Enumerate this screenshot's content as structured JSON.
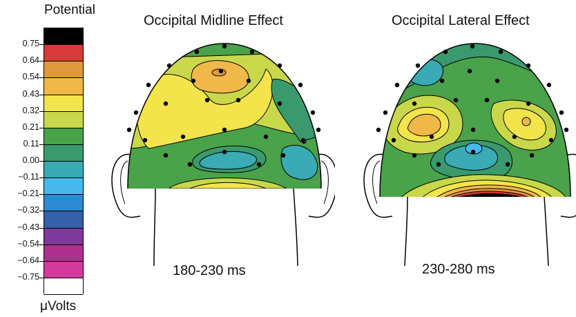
{
  "colorbar": {
    "title": "Potential",
    "unit": "μVolts",
    "ticks": [
      "0.75",
      "0.64",
      "0.54",
      "0.43",
      "0.32",
      "0.21",
      "0.11",
      "0.00",
      "−0.11",
      "−0.21",
      "−0.32",
      "−0.43",
      "−0.54",
      "−0.64",
      "−0.75"
    ],
    "colors": [
      "#000000",
      "#d63a3a",
      "#e0983c",
      "#f0b848",
      "#f4e44c",
      "#c8d84a",
      "#4aa24a",
      "#3a9a6e",
      "#3aaab4",
      "#48b8ec",
      "#2e8ad2",
      "#3660a8",
      "#7e3a9a",
      "#b0308e",
      "#d23a9c",
      "#ffffff"
    ]
  },
  "maps": [
    {
      "title": "Occipital Midline Effect",
      "time": "180-230 ms"
    },
    {
      "title": "Occipital Lateral Effect",
      "time": "230-280 ms"
    }
  ]
}
